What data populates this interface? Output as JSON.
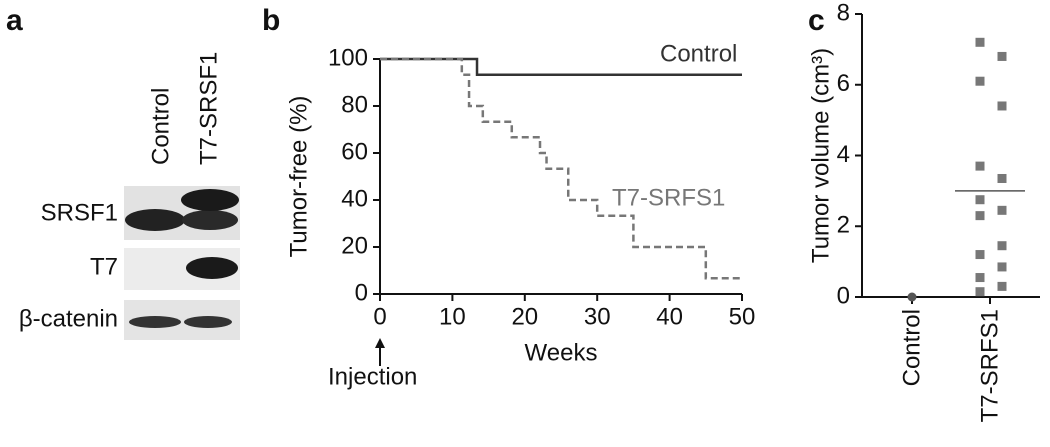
{
  "blot": {
    "panel": "a",
    "lanes": [
      "Control",
      "T7-SRSF1"
    ],
    "rows": [
      "SRSF1",
      "T7",
      "β-catenin"
    ]
  },
  "chart_data": [
    {
      "type": "step",
      "panel": "b",
      "ylabel": "Tumor-free (%)",
      "xlabel": "Weeks",
      "annotation": "Injection",
      "xlim": [
        0,
        50
      ],
      "xticks": [
        0,
        10,
        20,
        30,
        40,
        50
      ],
      "ylim": [
        0,
        100
      ],
      "yticks": [
        0,
        20,
        40,
        60,
        80,
        100
      ],
      "series": [
        {
          "name": "Control",
          "color": "#333333",
          "dashed": false,
          "x": [
            0,
            13.4,
            50
          ],
          "values": [
            100,
            93.3,
            93.3
          ]
        },
        {
          "name": "T7-SRFS1",
          "color": "#777777",
          "dashed": true,
          "x": [
            0,
            11.3,
            12.3,
            14.2,
            18.2,
            22.1,
            23,
            26,
            30,
            35,
            45,
            50
          ],
          "values": [
            100,
            93.3,
            80,
            73.3,
            66.7,
            60,
            53.3,
            40,
            33.3,
            20,
            6.7,
            6.7
          ]
        }
      ]
    },
    {
      "type": "dot",
      "panel": "c",
      "ylabel": "Tumor volume (cm³)",
      "ylim": [
        0,
        8
      ],
      "yticks": [
        0,
        2,
        4,
        6,
        8
      ],
      "categories": [
        "Control",
        "T7-SRFS1"
      ],
      "colors": [
        "#555555",
        "#777777"
      ],
      "markers": [
        "circle",
        "square"
      ],
      "points": [
        [
          0
        ],
        [
          7.2,
          6.8,
          6.1,
          5.4,
          3.7,
          3.35,
          2.75,
          2.45,
          2.3,
          1.45,
          1.2,
          0.85,
          0.55,
          0.3,
          0.15
        ]
      ],
      "means": [
        null,
        3.0
      ]
    }
  ]
}
